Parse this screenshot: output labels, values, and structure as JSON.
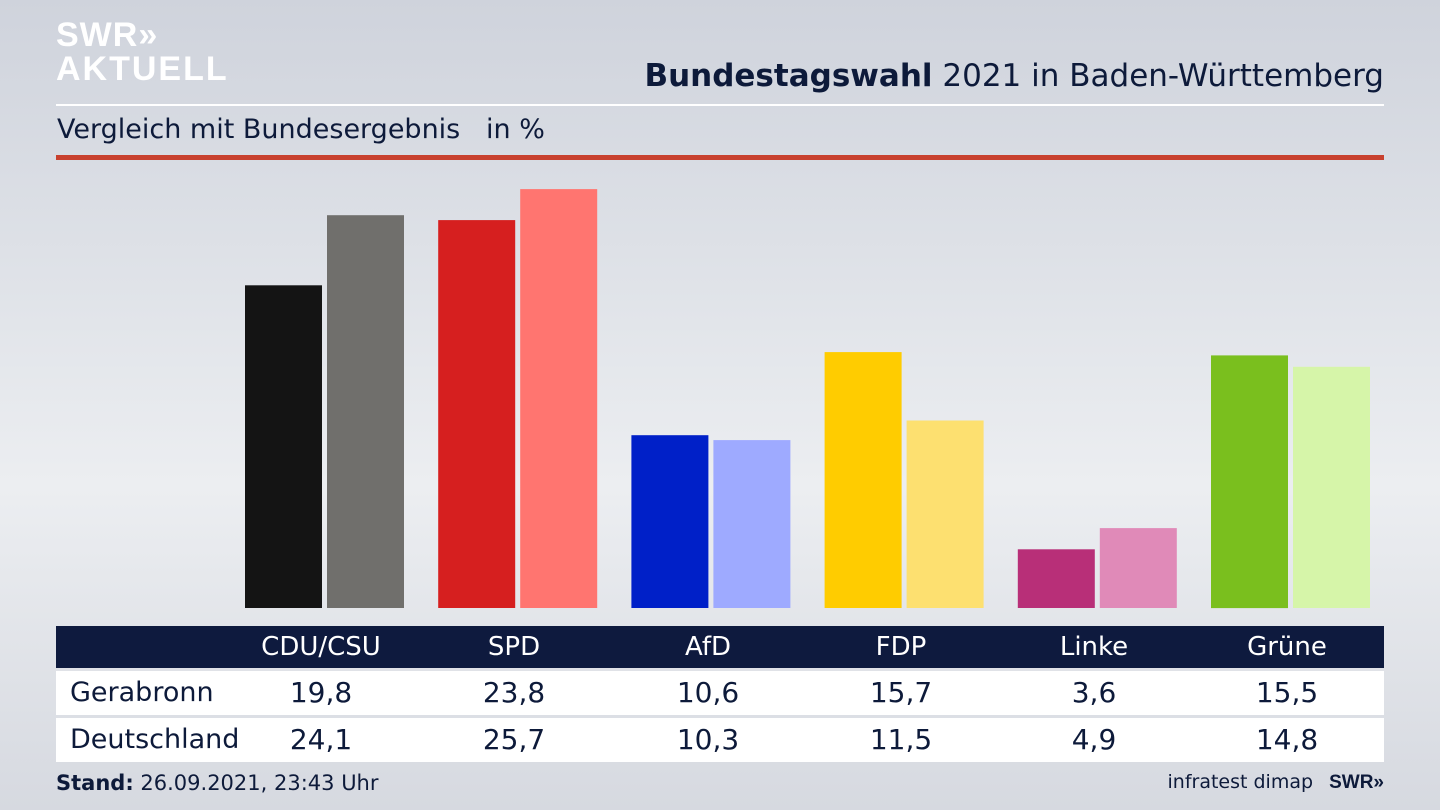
{
  "brand": {
    "logo_line1": "SWR»",
    "logo_line2": "AKTUELL",
    "footer_logo": "SWR»"
  },
  "header": {
    "title_bold": "Bundestagswahl",
    "title_rest": "2021 in Baden-Württemberg",
    "subtitle": "Vergleich mit Bundesergebnis   in %"
  },
  "footer": {
    "stand_label": "Stand:",
    "stand_value": "26.09.2021, 23:43 Uhr",
    "source": "infratest dimap"
  },
  "table": {
    "rows": [
      {
        "label": "Gerabronn",
        "values": [
          "19,8",
          "23,8",
          "10,6",
          "15,7",
          "3,6",
          "15,5"
        ]
      },
      {
        "label": "Deutschland",
        "values": [
          "24,1",
          "25,7",
          "10,3",
          "11,5",
          "4,9",
          "14,8"
        ]
      }
    ]
  },
  "chart_data": {
    "type": "bar",
    "categories": [
      "CDU/CSU",
      "SPD",
      "AfD",
      "FDP",
      "Linke",
      "Grüne"
    ],
    "series": [
      {
        "name": "Gerabronn",
        "values": [
          19.8,
          23.8,
          10.6,
          15.7,
          3.6,
          15.5
        ]
      },
      {
        "name": "Deutschland",
        "values": [
          24.1,
          25.7,
          10.3,
          11.5,
          4.9,
          14.8
        ]
      }
    ],
    "colors": {
      "Gerabronn": [
        "#141414",
        "#d61f1f",
        "#0020c8",
        "#ffcc00",
        "#b82f78",
        "#7abf1e"
      ],
      "Deutschland": [
        "#706f6c",
        "#ff7570",
        "#9eaaff",
        "#fde070",
        "#e08ab8",
        "#d6f5a9"
      ]
    },
    "title": "Bundestagswahl 2021 in Baden-Württemberg",
    "subtitle": "Vergleich mit Bundesergebnis   in %",
    "ylabel": "in %",
    "grid": false
  }
}
